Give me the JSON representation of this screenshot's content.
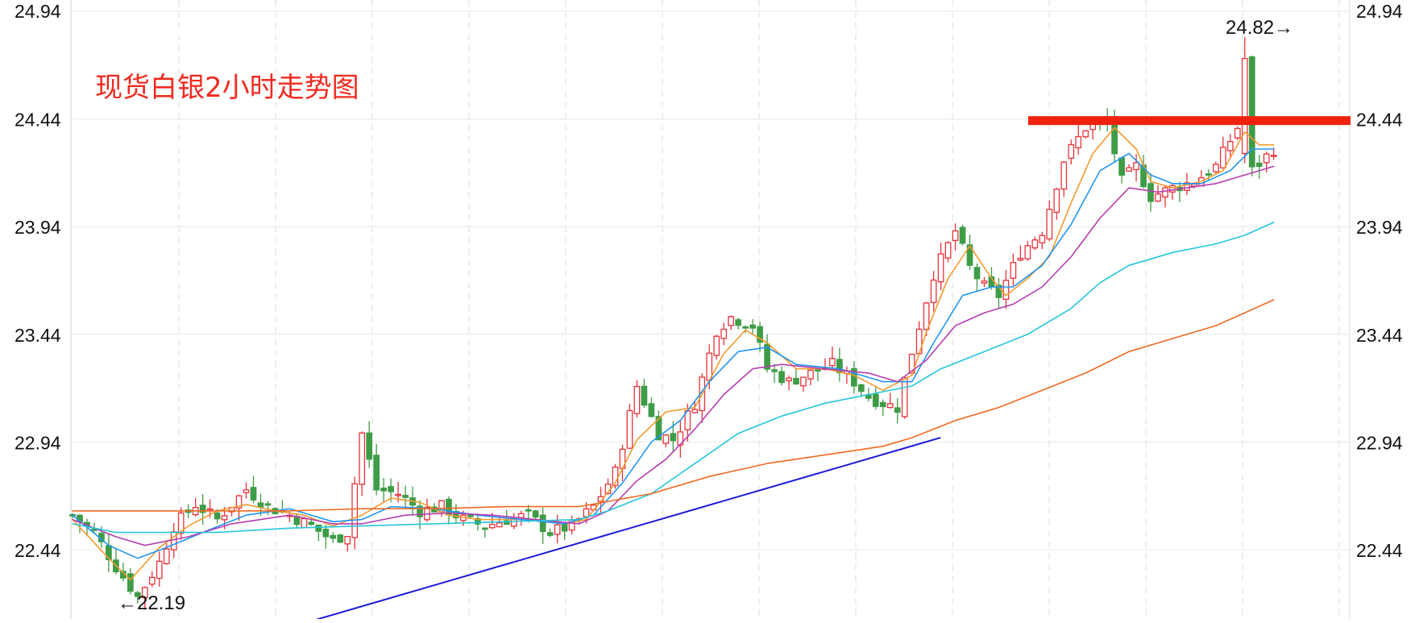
{
  "chart_data": {
    "type": "line",
    "title": "现货白银2小时走势图",
    "y_ticks": [
      "24.94",
      "24.44",
      "23.94",
      "23.44",
      "22.94",
      "22.44"
    ],
    "y_tick_values": [
      24.94,
      24.44,
      23.94,
      23.44,
      22.94,
      22.44
    ],
    "ylim": [
      22.06,
      24.98
    ],
    "grid": true,
    "annotations": {
      "high_label": "24.82→",
      "high_value": 24.82,
      "low_label": "←22.19",
      "low_value": 22.19
    },
    "resistance_level": 24.44,
    "support_trendline": [
      [
        0.16,
        22.06
      ],
      [
        0.68,
        22.96
      ]
    ],
    "candle_anchors": [
      [
        0,
        22.6
      ],
      [
        3,
        22.52
      ],
      [
        6,
        22.36
      ],
      [
        9,
        22.22
      ],
      [
        12,
        22.38
      ],
      [
        14,
        22.55
      ],
      [
        17,
        22.65
      ],
      [
        20,
        22.58
      ],
      [
        24,
        22.72
      ],
      [
        27,
        22.64
      ],
      [
        30,
        22.6
      ],
      [
        33,
        22.55
      ],
      [
        36,
        22.48
      ],
      [
        38,
        22.52
      ],
      [
        40,
        22.98
      ],
      [
        42,
        22.72
      ],
      [
        45,
        22.7
      ],
      [
        48,
        22.62
      ],
      [
        51,
        22.64
      ],
      [
        54,
        22.58
      ],
      [
        57,
        22.55
      ],
      [
        60,
        22.58
      ],
      [
        63,
        22.6
      ],
      [
        66,
        22.52
      ],
      [
        69,
        22.55
      ],
      [
        72,
        22.64
      ],
      [
        75,
        22.8
      ],
      [
        78,
        23.2
      ],
      [
        81,
        22.98
      ],
      [
        83,
        22.95
      ],
      [
        86,
        23.12
      ],
      [
        89,
        23.46
      ],
      [
        91,
        23.52
      ],
      [
        94,
        23.48
      ],
      [
        96,
        23.28
      ],
      [
        99,
        23.22
      ],
      [
        102,
        23.26
      ],
      [
        105,
        23.3
      ],
      [
        108,
        23.22
      ],
      [
        110,
        23.15
      ],
      [
        112,
        23.12
      ],
      [
        114,
        23.1
      ],
      [
        116,
        23.36
      ],
      [
        119,
        23.72
      ],
      [
        122,
        23.92
      ],
      [
        124,
        23.75
      ],
      [
        126,
        23.66
      ],
      [
        128,
        23.62
      ],
      [
        131,
        23.82
      ],
      [
        134,
        23.92
      ],
      [
        137,
        24.25
      ],
      [
        140,
        24.4
      ],
      [
        143,
        24.42
      ],
      [
        145,
        24.15
      ],
      [
        147,
        24.22
      ],
      [
        149,
        24.08
      ],
      [
        152,
        24.12
      ],
      [
        155,
        24.15
      ],
      [
        158,
        24.22
      ],
      [
        161,
        24.4
      ],
      [
        162,
        24.72
      ],
      [
        163,
        24.2
      ],
      [
        166,
        24.3
      ]
    ],
    "ma_lines": [
      {
        "color": "#f39a2e",
        "width": 1.6,
        "points": [
          [
            0,
            22.58
          ],
          [
            5,
            22.4
          ],
          [
            8,
            22.3
          ],
          [
            12,
            22.45
          ],
          [
            16,
            22.55
          ],
          [
            20,
            22.62
          ],
          [
            24,
            22.65
          ],
          [
            28,
            22.62
          ],
          [
            32,
            22.6
          ],
          [
            36,
            22.55
          ],
          [
            40,
            22.6
          ],
          [
            44,
            22.68
          ],
          [
            48,
            22.66
          ],
          [
            52,
            22.6
          ],
          [
            56,
            22.58
          ],
          [
            60,
            22.58
          ],
          [
            64,
            22.58
          ],
          [
            68,
            22.56
          ],
          [
            71,
            22.58
          ],
          [
            75,
            22.75
          ],
          [
            78,
            22.95
          ],
          [
            82,
            23.08
          ],
          [
            86,
            23.1
          ],
          [
            90,
            23.35
          ],
          [
            93,
            23.46
          ],
          [
            96,
            23.4
          ],
          [
            100,
            23.28
          ],
          [
            104,
            23.28
          ],
          [
            108,
            23.25
          ],
          [
            112,
            23.18
          ],
          [
            116,
            23.25
          ],
          [
            118,
            23.45
          ],
          [
            121,
            23.7
          ],
          [
            124,
            23.85
          ],
          [
            127,
            23.7
          ],
          [
            129,
            23.62
          ],
          [
            132,
            23.7
          ],
          [
            135,
            23.8
          ],
          [
            138,
            24.05
          ],
          [
            141,
            24.28
          ],
          [
            144,
            24.4
          ],
          [
            147,
            24.3
          ],
          [
            149,
            24.15
          ],
          [
            152,
            24.12
          ],
          [
            156,
            24.15
          ],
          [
            159,
            24.2
          ],
          [
            162,
            24.38
          ],
          [
            164,
            24.32
          ],
          [
            166,
            24.32
          ]
        ]
      },
      {
        "color": "#2196f3",
        "width": 1.6,
        "points": [
          [
            0,
            22.6
          ],
          [
            5,
            22.46
          ],
          [
            9,
            22.4
          ],
          [
            13,
            22.45
          ],
          [
            18,
            22.52
          ],
          [
            24,
            22.6
          ],
          [
            30,
            22.63
          ],
          [
            36,
            22.57
          ],
          [
            40,
            22.58
          ],
          [
            44,
            22.64
          ],
          [
            50,
            22.63
          ],
          [
            56,
            22.6
          ],
          [
            62,
            22.58
          ],
          [
            68,
            22.56
          ],
          [
            72,
            22.6
          ],
          [
            76,
            22.75
          ],
          [
            80,
            22.94
          ],
          [
            84,
            23.04
          ],
          [
            88,
            23.22
          ],
          [
            92,
            23.36
          ],
          [
            96,
            23.38
          ],
          [
            100,
            23.3
          ],
          [
            106,
            23.28
          ],
          [
            112,
            23.22
          ],
          [
            116,
            23.22
          ],
          [
            119,
            23.4
          ],
          [
            123,
            23.62
          ],
          [
            127,
            23.66
          ],
          [
            130,
            23.66
          ],
          [
            134,
            23.76
          ],
          [
            138,
            23.95
          ],
          [
            142,
            24.2
          ],
          [
            146,
            24.28
          ],
          [
            149,
            24.18
          ],
          [
            152,
            24.14
          ],
          [
            156,
            24.14
          ],
          [
            160,
            24.2
          ],
          [
            163,
            24.3
          ],
          [
            166,
            24.3
          ]
        ]
      },
      {
        "color": "#b63eb0",
        "width": 1.6,
        "points": [
          [
            0,
            22.58
          ],
          [
            6,
            22.5
          ],
          [
            10,
            22.46
          ],
          [
            16,
            22.5
          ],
          [
            22,
            22.56
          ],
          [
            30,
            22.6
          ],
          [
            36,
            22.56
          ],
          [
            40,
            22.56
          ],
          [
            46,
            22.6
          ],
          [
            52,
            22.61
          ],
          [
            58,
            22.6
          ],
          [
            64,
            22.58
          ],
          [
            70,
            22.56
          ],
          [
            74,
            22.62
          ],
          [
            78,
            22.76
          ],
          [
            82,
            22.86
          ],
          [
            86,
            23.0
          ],
          [
            90,
            23.16
          ],
          [
            94,
            23.28
          ],
          [
            98,
            23.3
          ],
          [
            104,
            23.28
          ],
          [
            110,
            23.26
          ],
          [
            114,
            23.22
          ],
          [
            118,
            23.32
          ],
          [
            122,
            23.48
          ],
          [
            126,
            23.54
          ],
          [
            130,
            23.58
          ],
          [
            134,
            23.66
          ],
          [
            138,
            23.8
          ],
          [
            142,
            23.98
          ],
          [
            146,
            24.12
          ],
          [
            150,
            24.1
          ],
          [
            154,
            24.12
          ],
          [
            158,
            24.14
          ],
          [
            162,
            24.18
          ],
          [
            166,
            24.22
          ]
        ]
      },
      {
        "color": "#24c6dc",
        "width": 1.6,
        "points": [
          [
            0,
            22.56
          ],
          [
            6,
            22.52
          ],
          [
            12,
            22.52
          ],
          [
            20,
            22.52
          ],
          [
            30,
            22.54
          ],
          [
            40,
            22.55
          ],
          [
            50,
            22.56
          ],
          [
            60,
            22.57
          ],
          [
            70,
            22.58
          ],
          [
            74,
            22.62
          ],
          [
            80,
            22.7
          ],
          [
            86,
            22.84
          ],
          [
            92,
            22.98
          ],
          [
            98,
            23.06
          ],
          [
            104,
            23.12
          ],
          [
            110,
            23.16
          ],
          [
            116,
            23.2
          ],
          [
            120,
            23.28
          ],
          [
            126,
            23.36
          ],
          [
            132,
            23.44
          ],
          [
            138,
            23.56
          ],
          [
            142,
            23.68
          ],
          [
            146,
            23.76
          ],
          [
            152,
            23.82
          ],
          [
            158,
            23.86
          ],
          [
            162,
            23.9
          ],
          [
            166,
            23.96
          ]
        ]
      },
      {
        "color": "#f06a22",
        "width": 1.6,
        "points": [
          [
            0,
            22.62
          ],
          [
            10,
            22.62
          ],
          [
            20,
            22.62
          ],
          [
            30,
            22.62
          ],
          [
            40,
            22.63
          ],
          [
            50,
            22.63
          ],
          [
            60,
            22.64
          ],
          [
            70,
            22.64
          ],
          [
            80,
            22.7
          ],
          [
            88,
            22.78
          ],
          [
            96,
            22.84
          ],
          [
            104,
            22.88
          ],
          [
            112,
            22.92
          ],
          [
            116,
            22.96
          ],
          [
            122,
            23.04
          ],
          [
            128,
            23.1
          ],
          [
            134,
            23.18
          ],
          [
            140,
            23.26
          ],
          [
            146,
            23.36
          ],
          [
            152,
            23.42
          ],
          [
            158,
            23.48
          ],
          [
            162,
            23.54
          ],
          [
            166,
            23.6
          ]
        ]
      }
    ]
  }
}
